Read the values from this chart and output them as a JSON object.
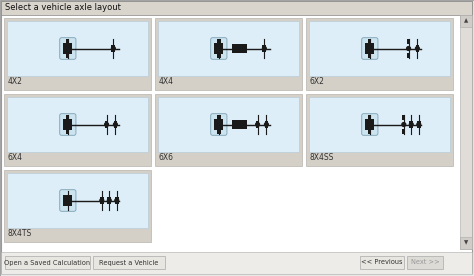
{
  "title": "Select a vehicle axle layout",
  "bg_outer": "#e8e8e8",
  "bg_dialog": "#ffffff",
  "header_bg": "#d4d0c8",
  "header_text": "#000000",
  "cell_bg": "#d4d0c8",
  "truck_area_bg": "#deeef8",
  "truck_area_outline": "#b8ccd8",
  "frame_color": "#1a1a1a",
  "wheel_color": "#1a1a1a",
  "cab_bg": "#cce4f0",
  "cab_outline": "#88aabb",
  "scrollbar_bg": "#e0e0e0",
  "btn_bg": "#e8e6e0",
  "btn_outline": "#aaaaaa",
  "btn_text": "#333333",
  "btn_disabled_text": "#999999",
  "label_text": "#333333",
  "grid_labels": [
    "4X2",
    "4X4",
    "6X2",
    "6X4",
    "6X6",
    "8X4SS",
    "8X4TS"
  ],
  "button_labels": [
    "Open a Saved Calculation",
    "Request a Vehicle",
    "<< Previous",
    "Next >>"
  ],
  "configs": {
    "4X2": {
      "has_cab": true,
      "has_middle_box": false,
      "front_axles": 1,
      "rear_axles": 1,
      "rear_dual": true,
      "front_dual": false
    },
    "4X4": {
      "has_cab": true,
      "has_middle_box": true,
      "front_axles": 1,
      "rear_axles": 1,
      "rear_dual": true,
      "front_dual": false
    },
    "6X2": {
      "has_cab": true,
      "has_middle_box": false,
      "front_axles": 1,
      "rear_axles": 2,
      "rear_dual": true,
      "front_dual": false,
      "rear2_dual": false
    },
    "6X4": {
      "has_cab": true,
      "has_middle_box": false,
      "front_axles": 1,
      "rear_axles": 2,
      "rear_dual": true,
      "front_dual": false,
      "rear2_dual": true
    },
    "6X6": {
      "has_cab": true,
      "has_middle_box": true,
      "front_axles": 1,
      "rear_axles": 2,
      "rear_dual": true,
      "front_dual": false,
      "rear2_dual": true
    },
    "8X4SS": {
      "has_cab": true,
      "has_middle_box": false,
      "front_axles": 1,
      "rear_axles": 3,
      "rear_dual": true,
      "front_dual": false
    },
    "8X4TS": {
      "has_cab": true,
      "has_middle_box": false,
      "front_axles": 1,
      "rear_axles": 3,
      "rear_dual": true,
      "front_dual": true
    }
  }
}
